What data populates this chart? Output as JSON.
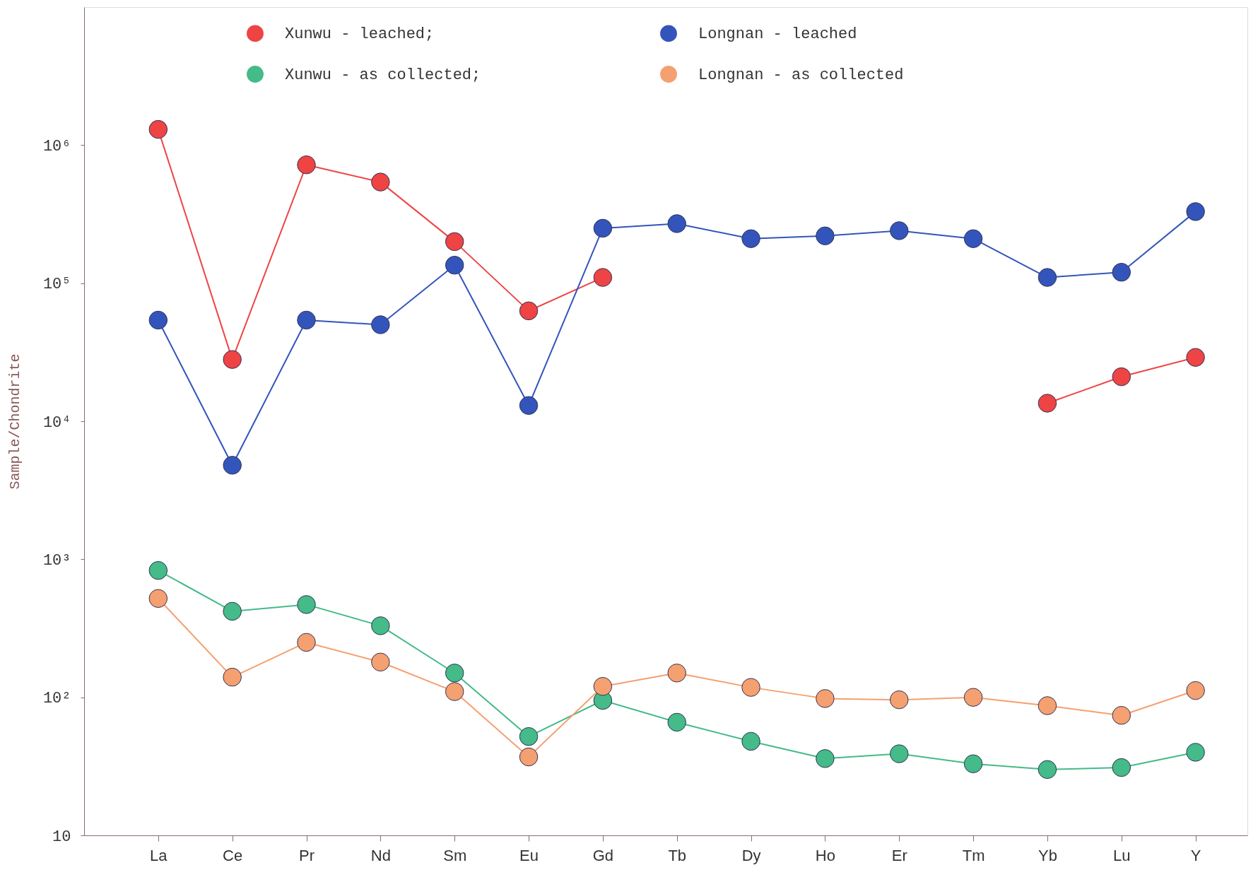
{
  "chart_data": {
    "type": "line",
    "ylabel": "Sample/Chondrite",
    "categories": [
      "La",
      "Ce",
      "Pr",
      "Nd",
      "Sm",
      "Eu",
      "Gd",
      "Tb",
      "Dy",
      "Ho",
      "Er",
      "Tm",
      "Yb",
      "Lu",
      "Y"
    ],
    "log": true,
    "ylim": [
      10,
      10000000
    ],
    "yticks": [
      10,
      {
        "value": 100,
        "label": "10²"
      },
      {
        "value": 1000,
        "label": "10³"
      },
      {
        "value": 10000,
        "label": "10⁴"
      },
      {
        "value": 100000,
        "label": "10⁵"
      },
      {
        "value": 1000000,
        "label": "10⁶"
      }
    ],
    "grid": false,
    "legend": "top",
    "marker": "circle",
    "line_style": "solid",
    "series": [
      {
        "name": "Xunwu - leached;",
        "color": "#ee4444",
        "values": [
          1300000,
          28000,
          720000,
          540000,
          200000,
          63000,
          110000,
          null,
          null,
          null,
          null,
          null,
          13500,
          21000,
          29000
        ]
      },
      {
        "name": "Xunwu - as collected;",
        "color": "#44bb88",
        "values": [
          830,
          420,
          470,
          330,
          150,
          52,
          95,
          66,
          48,
          36,
          39,
          33,
          30,
          31,
          40
        ]
      },
      {
        "name": "Longnan - leached",
        "color": "#3355bb",
        "values": [
          54000,
          4800,
          54000,
          50000,
          135000,
          13000,
          250000,
          270000,
          210000,
          220000,
          240000,
          210000,
          110000,
          120000,
          330000
        ]
      },
      {
        "name": "Longnan - as collected",
        "color": "#f5a070",
        "values": [
          520,
          140,
          250,
          180,
          110,
          37,
          120,
          150,
          118,
          98,
          96,
          100,
          87,
          74,
          112
        ]
      }
    ]
  }
}
